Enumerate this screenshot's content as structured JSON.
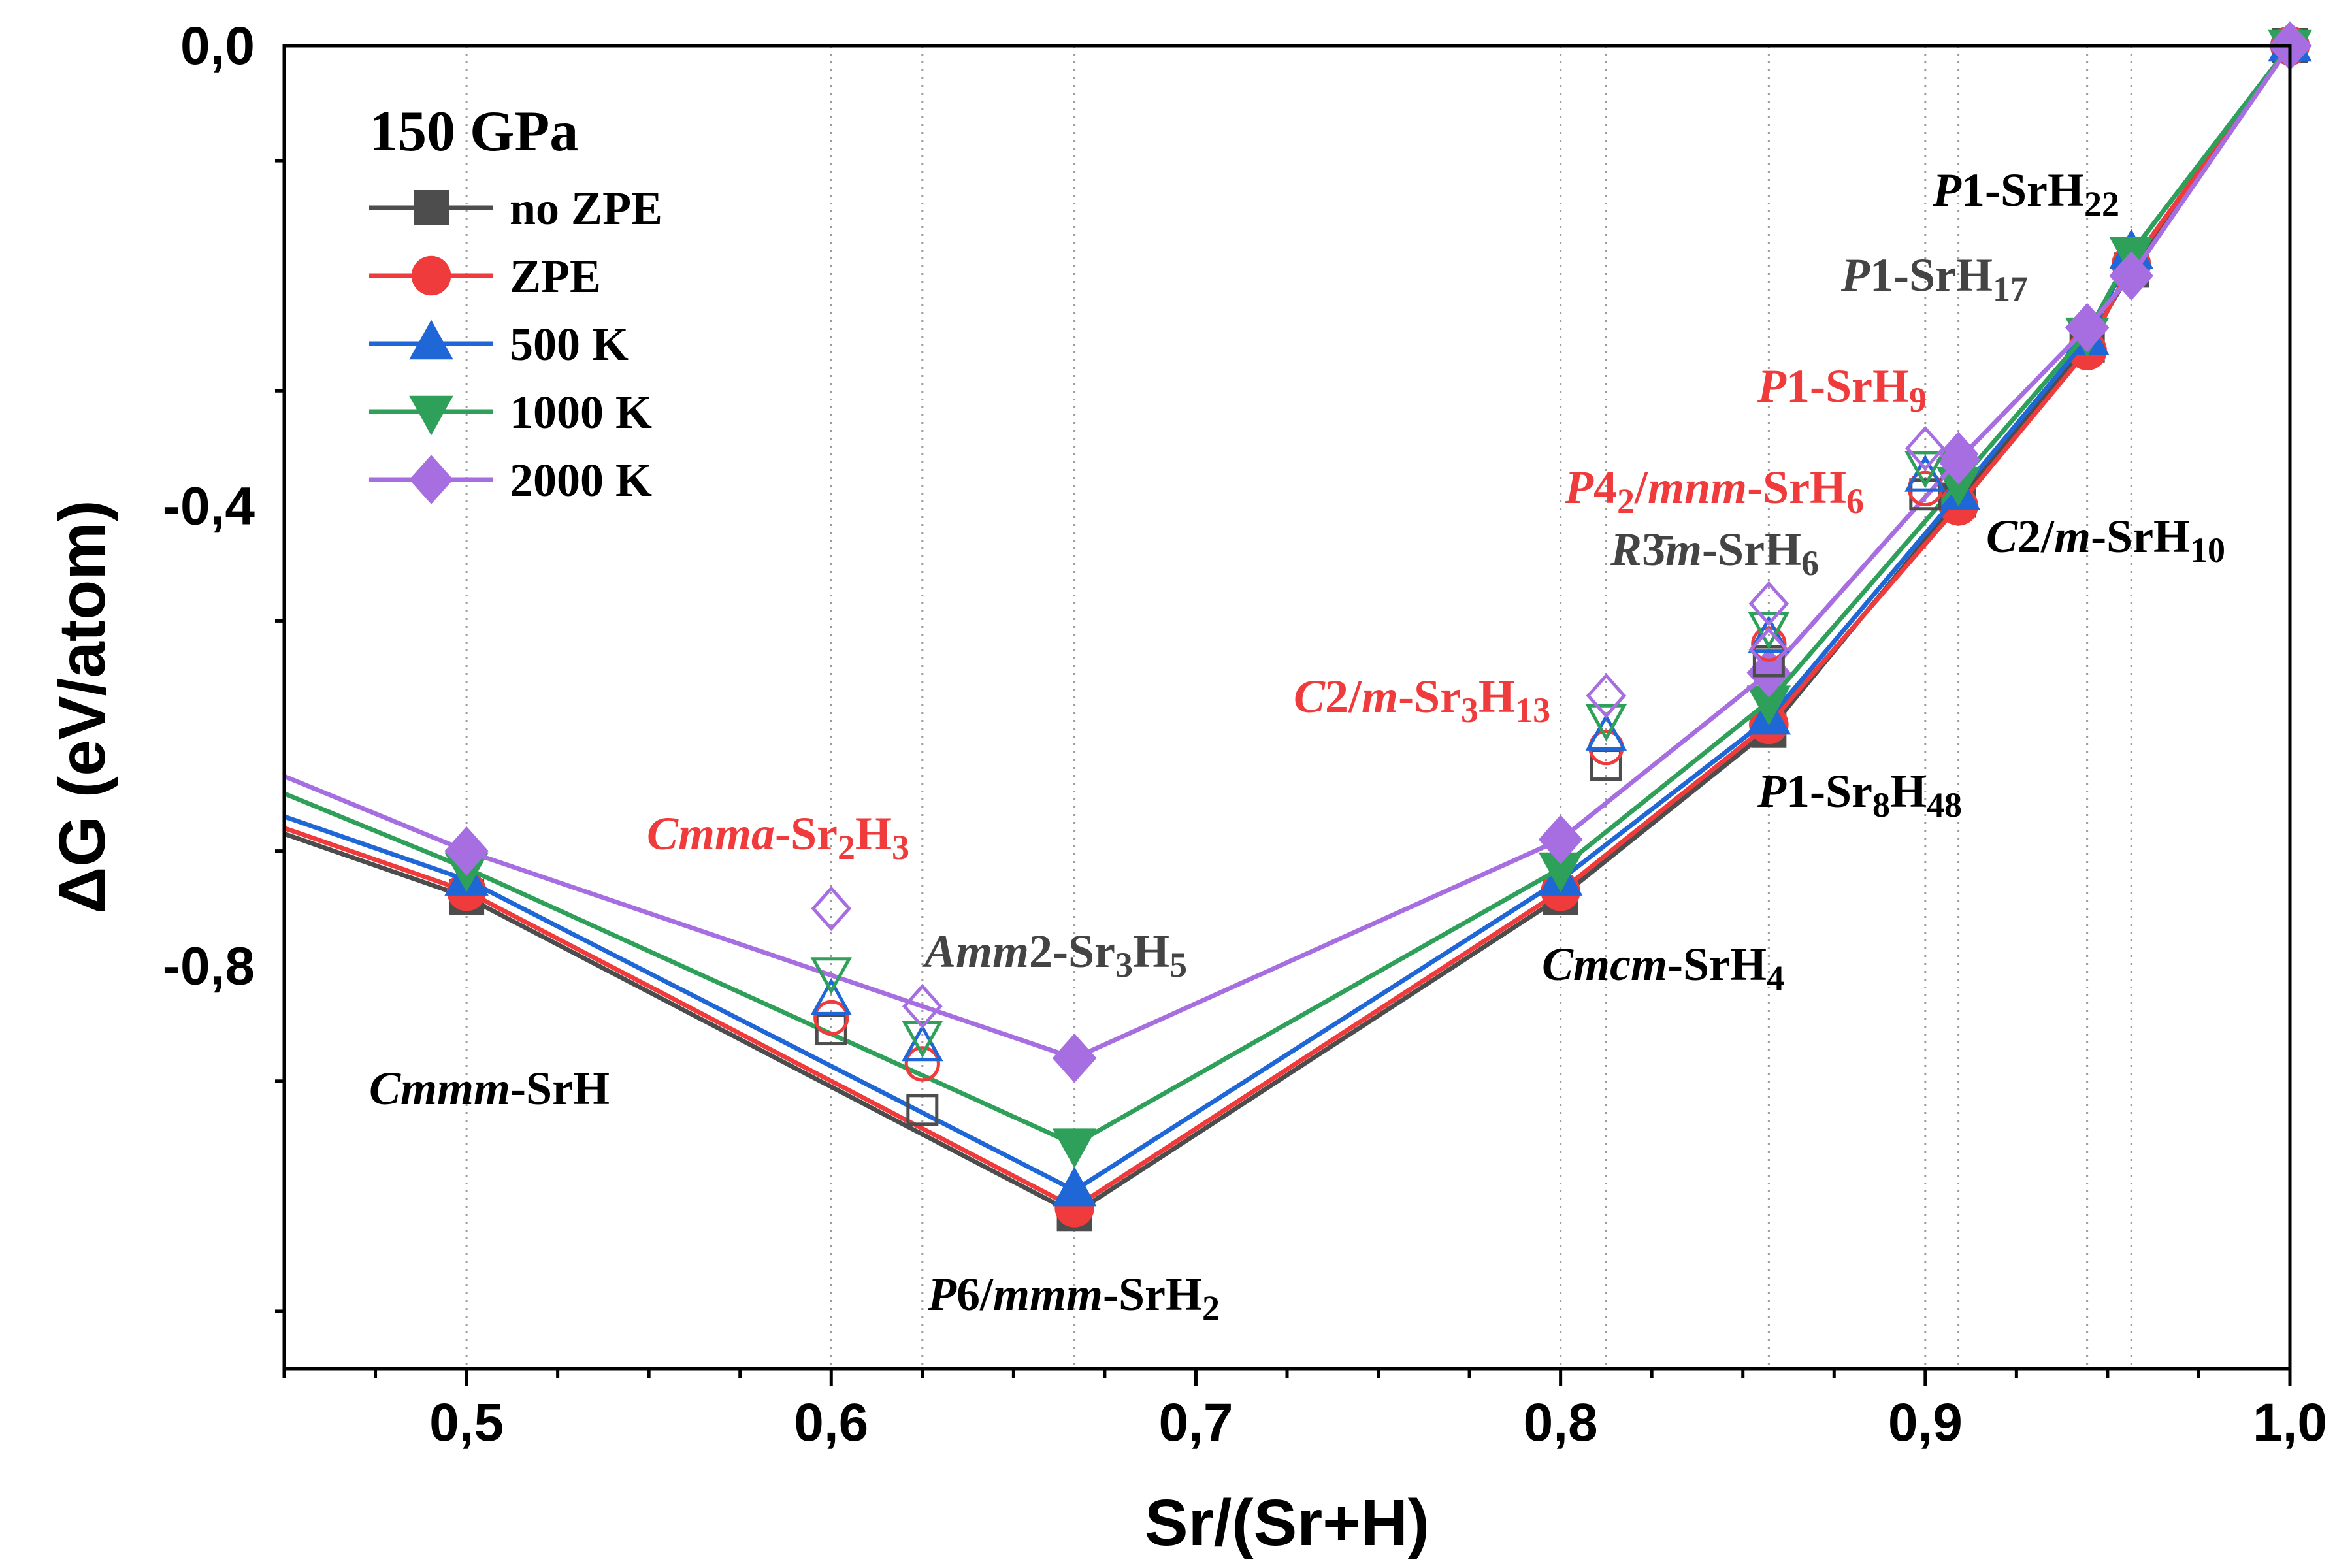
{
  "chart_data": {
    "type": "line",
    "xlabel": "Sr/(Sr+H)",
    "ylabel": "ΔG (eV/atom)",
    "xlim": [
      0.45,
      1.0
    ],
    "ylim": [
      -1.15,
      0.0
    ],
    "x_ticks": [
      "0,5",
      "0,6",
      "0,7",
      "0,8",
      "0,9",
      "1,0"
    ],
    "x_tick_values": [
      0.5,
      0.6,
      0.7,
      0.8,
      0.9,
      1.0
    ],
    "y_ticks": [
      "0,0",
      "-0,4",
      "-0,8"
    ],
    "y_tick_values": [
      0.0,
      -0.4,
      -0.8
    ],
    "grid": "vertical dotted lines at compositions",
    "reference_lines_x": [
      0.5,
      0.6,
      0.625,
      0.6667,
      0.8,
      0.8125,
      0.8571,
      0.9,
      0.9091,
      0.9444,
      0.9565
    ],
    "legend": {
      "title": "150 GPa",
      "placement": "top-left"
    },
    "series": [
      {
        "name": "no ZPE",
        "color": "#4d4d4d",
        "marker": "square",
        "x": [
          0.45,
          0.5,
          0.6667,
          0.8,
          0.8571,
          0.9091,
          0.9444,
          0.9565,
          1.0
        ],
        "y": [
          -0.685,
          -0.74,
          -1.015,
          -0.74,
          -0.595,
          -0.395,
          -0.26,
          -0.195,
          0.0
        ],
        "metastable": [
          {
            "x": 0.6,
            "y": -0.855
          },
          {
            "x": 0.625,
            "y": -0.925
          },
          {
            "x": 0.8125,
            "y": -0.625
          },
          {
            "x": 0.8571,
            "y": -0.535
          },
          {
            "x": 0.9,
            "y": -0.39
          }
        ]
      },
      {
        "name": "ZPE",
        "color": "#ef3b3b",
        "marker": "circle",
        "x": [
          0.45,
          0.5,
          0.6667,
          0.8,
          0.8571,
          0.9091,
          0.9444,
          0.9565,
          1.0
        ],
        "y": [
          -0.68,
          -0.735,
          -1.01,
          -0.735,
          -0.59,
          -0.4,
          -0.265,
          -0.19,
          0.0
        ],
        "metastable": [
          {
            "x": 0.6,
            "y": -0.845
          },
          {
            "x": 0.625,
            "y": -0.885
          },
          {
            "x": 0.8125,
            "y": -0.61
          },
          {
            "x": 0.8571,
            "y": -0.52
          },
          {
            "x": 0.9,
            "y": -0.385
          }
        ]
      },
      {
        "name": "500 K",
        "color": "#1f66d6",
        "marker": "triangle-up",
        "x": [
          0.45,
          0.5,
          0.6667,
          0.8,
          0.8571,
          0.9091,
          0.9444,
          0.9565,
          1.0
        ],
        "y": [
          -0.67,
          -0.725,
          -0.995,
          -0.725,
          -0.585,
          -0.39,
          -0.255,
          -0.18,
          0.0
        ],
        "metastable": [
          {
            "x": 0.6,
            "y": -0.83
          },
          {
            "x": 0.625,
            "y": -0.87
          },
          {
            "x": 0.8125,
            "y": -0.6
          },
          {
            "x": 0.8571,
            "y": -0.515
          },
          {
            "x": 0.9,
            "y": -0.375
          }
        ]
      },
      {
        "name": "1000 K",
        "color": "#2fa05a",
        "marker": "triangle-down",
        "x": [
          0.45,
          0.5,
          0.6667,
          0.8,
          0.8571,
          0.9091,
          0.9444,
          0.9565,
          1.0
        ],
        "y": [
          -0.65,
          -0.715,
          -0.955,
          -0.715,
          -0.57,
          -0.38,
          -0.25,
          -0.18,
          0.0
        ],
        "metastable": [
          {
            "x": 0.6,
            "y": -0.805
          },
          {
            "x": 0.625,
            "y": -0.86
          },
          {
            "x": 0.8125,
            "y": -0.585
          },
          {
            "x": 0.8571,
            "y": -0.505
          },
          {
            "x": 0.9,
            "y": -0.365
          }
        ]
      },
      {
        "name": "2000 K",
        "color": "#a66ee0",
        "marker": "diamond",
        "x": [
          0.45,
          0.5,
          0.6667,
          0.8,
          0.8571,
          0.9091,
          0.9444,
          0.9565,
          1.0
        ],
        "y": [
          -0.635,
          -0.7,
          -0.88,
          -0.69,
          -0.545,
          -0.36,
          -0.245,
          -0.2,
          0.0
        ],
        "metastable": [
          {
            "x": 0.6,
            "y": -0.75
          },
          {
            "x": 0.625,
            "y": -0.835
          },
          {
            "x": 0.8125,
            "y": -0.565
          },
          {
            "x": 0.8571,
            "y": -0.485
          },
          {
            "x": 0.8571,
            "y": -0.525
          },
          {
            "x": 0.9,
            "y": -0.35
          },
          {
            "x": 0.9091,
            "y": -0.355
          }
        ]
      }
    ],
    "annotations": [
      {
        "color": "#000000",
        "parts": [
          {
            "t": "Cmmm",
            "s": "i"
          },
          {
            "t": "-SrH",
            "s": "n"
          }
        ]
      },
      {
        "color": "#ef3b3b",
        "parts": [
          {
            "t": "Cmma",
            "s": "i"
          },
          {
            "t": "-Sr",
            "s": "n"
          },
          {
            "t": "2",
            "s": "sub"
          },
          {
            "t": "H",
            "s": "n"
          },
          {
            "t": "3",
            "s": "sub"
          }
        ]
      },
      {
        "color": "#444444",
        "parts": [
          {
            "t": "Amm",
            "s": "i"
          },
          {
            "t": "2-Sr",
            "s": "n"
          },
          {
            "t": "3",
            "s": "sub"
          },
          {
            "t": "H",
            "s": "n"
          },
          {
            "t": "5",
            "s": "sub"
          }
        ]
      },
      {
        "color": "#000000",
        "parts": [
          {
            "t": "P",
            "s": "i"
          },
          {
            "t": "6/",
            "s": "n"
          },
          {
            "t": "mmm",
            "s": "i"
          },
          {
            "t": "-SrH",
            "s": "n"
          },
          {
            "t": "2",
            "s": "sub"
          }
        ]
      },
      {
        "color": "#000000",
        "parts": [
          {
            "t": "Cmcm",
            "s": "i"
          },
          {
            "t": "-SrH",
            "s": "n"
          },
          {
            "t": "4",
            "s": "sub"
          }
        ]
      },
      {
        "color": "#ef3b3b",
        "parts": [
          {
            "t": "C",
            "s": "i"
          },
          {
            "t": "2/",
            "s": "n"
          },
          {
            "t": "m",
            "s": "i"
          },
          {
            "t": "-Sr",
            "s": "n"
          },
          {
            "t": "3",
            "s": "sub"
          },
          {
            "t": "H",
            "s": "n"
          },
          {
            "t": "13",
            "s": "sub"
          }
        ]
      },
      {
        "color": "#000000",
        "parts": [
          {
            "t": "P",
            "s": "i"
          },
          {
            "t": "1-Sr",
            "s": "n"
          },
          {
            "t": "8",
            "s": "sub"
          },
          {
            "t": "H",
            "s": "n"
          },
          {
            "t": "48",
            "s": "sub"
          }
        ]
      },
      {
        "color": "#ef3b3b",
        "parts": [
          {
            "t": "P",
            "s": "i"
          },
          {
            "t": "4",
            "s": "n"
          },
          {
            "t": "2",
            "s": "sub"
          },
          {
            "t": "/",
            "s": "n"
          },
          {
            "t": "mnm",
            "s": "i"
          },
          {
            "t": "-SrH",
            "s": "n"
          },
          {
            "t": "6",
            "s": "sub"
          }
        ]
      },
      {
        "color": "#444444",
        "parts": [
          {
            "t": "R",
            "s": "i"
          },
          {
            "t": "3̄",
            "s": "n"
          },
          {
            "t": "m",
            "s": "i"
          },
          {
            "t": "-SrH",
            "s": "n"
          },
          {
            "t": "6",
            "s": "sub"
          }
        ]
      },
      {
        "color": "#ef3b3b",
        "parts": [
          {
            "t": "P",
            "s": "i"
          },
          {
            "t": "1-SrH",
            "s": "n"
          },
          {
            "t": "9",
            "s": "sub"
          }
        ]
      },
      {
        "color": "#000000",
        "parts": [
          {
            "t": "C",
            "s": "i"
          },
          {
            "t": "2/",
            "s": "n"
          },
          {
            "t": "m",
            "s": "i"
          },
          {
            "t": "-SrH",
            "s": "n"
          },
          {
            "t": "10",
            "s": "sub"
          }
        ]
      },
      {
        "color": "#444444",
        "parts": [
          {
            "t": "P",
            "s": "i"
          },
          {
            "t": "1-SrH",
            "s": "n"
          },
          {
            "t": "17",
            "s": "sub"
          }
        ]
      },
      {
        "color": "#000000",
        "parts": [
          {
            "t": "P",
            "s": "i"
          },
          {
            "t": "1-SrH",
            "s": "n"
          },
          {
            "t": "22",
            "s": "sub"
          }
        ]
      }
    ]
  }
}
